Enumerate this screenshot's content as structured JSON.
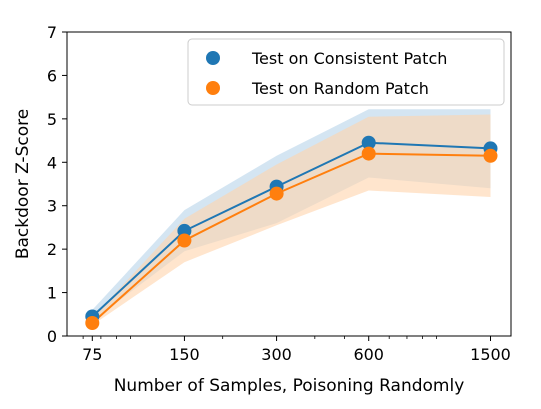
{
  "chart_data": {
    "type": "line",
    "xlabel": "Number of Samples, Poisoning Randomly",
    "ylabel": "Backdoor Z-Score",
    "x_scale": "log",
    "xlim": [
      62,
      1750
    ],
    "ylim": [
      0,
      7
    ],
    "x_ticks": [
      75,
      150,
      300,
      600,
      1500
    ],
    "x_tick_labels": [
      "75",
      "150",
      "300",
      "600",
      "1500"
    ],
    "y_ticks": [
      0,
      1,
      2,
      3,
      4,
      5,
      6,
      7
    ],
    "y_tick_labels": [
      "0",
      "1",
      "2",
      "3",
      "4",
      "5",
      "6",
      "7"
    ],
    "x": [
      75,
      150,
      300,
      600,
      1500
    ],
    "legend_position": "top-right",
    "grid": false,
    "series": [
      {
        "name": "Test on Consistent Patch",
        "color": "#1f77b4",
        "band_color": "#b7d3ea",
        "values": [
          0.45,
          2.42,
          3.44,
          4.45,
          4.32
        ],
        "band_low": [
          0.35,
          1.95,
          2.6,
          3.65,
          3.4
        ],
        "band_high": [
          0.6,
          2.9,
          4.15,
          5.22,
          5.22
        ]
      },
      {
        "name": "Test on Random Patch",
        "color": "#ff7f0e",
        "band_color": "#ffd3ac",
        "values": [
          0.3,
          2.2,
          3.28,
          4.2,
          4.15
        ],
        "band_low": [
          0.25,
          1.7,
          2.55,
          3.35,
          3.2
        ],
        "band_high": [
          0.42,
          2.7,
          3.95,
          5.05,
          5.1
        ]
      }
    ]
  }
}
